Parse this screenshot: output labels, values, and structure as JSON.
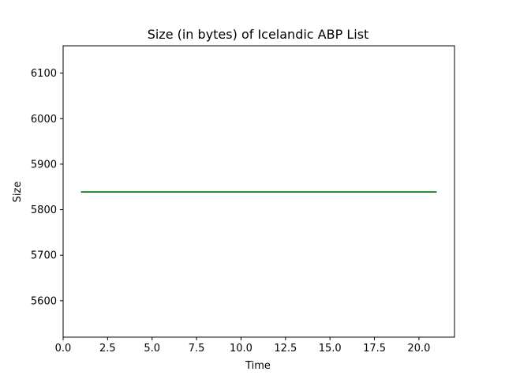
{
  "chart_data": {
    "type": "line",
    "title": "Size (in bytes) of Icelandic ABP List",
    "xlabel": "Time",
    "ylabel": "Size",
    "xlim": [
      0,
      22
    ],
    "ylim": [
      5520,
      6160
    ],
    "xticks": [
      0.0,
      2.5,
      5.0,
      7.5,
      10.0,
      12.5,
      15.0,
      17.5,
      20.0
    ],
    "xtick_labels": [
      "0.0",
      "2.5",
      "5.0",
      "7.5",
      "10.0",
      "12.5",
      "15.0",
      "17.5",
      "20.0"
    ],
    "yticks": [
      5600,
      5700,
      5800,
      5900,
      6000,
      6100
    ],
    "ytick_labels": [
      "5600",
      "5700",
      "5800",
      "5900",
      "6000",
      "6100"
    ],
    "grid": false,
    "series": [
      {
        "color": "#008000",
        "x": [
          1,
          21
        ],
        "y": [
          5839,
          5839
        ]
      }
    ]
  }
}
